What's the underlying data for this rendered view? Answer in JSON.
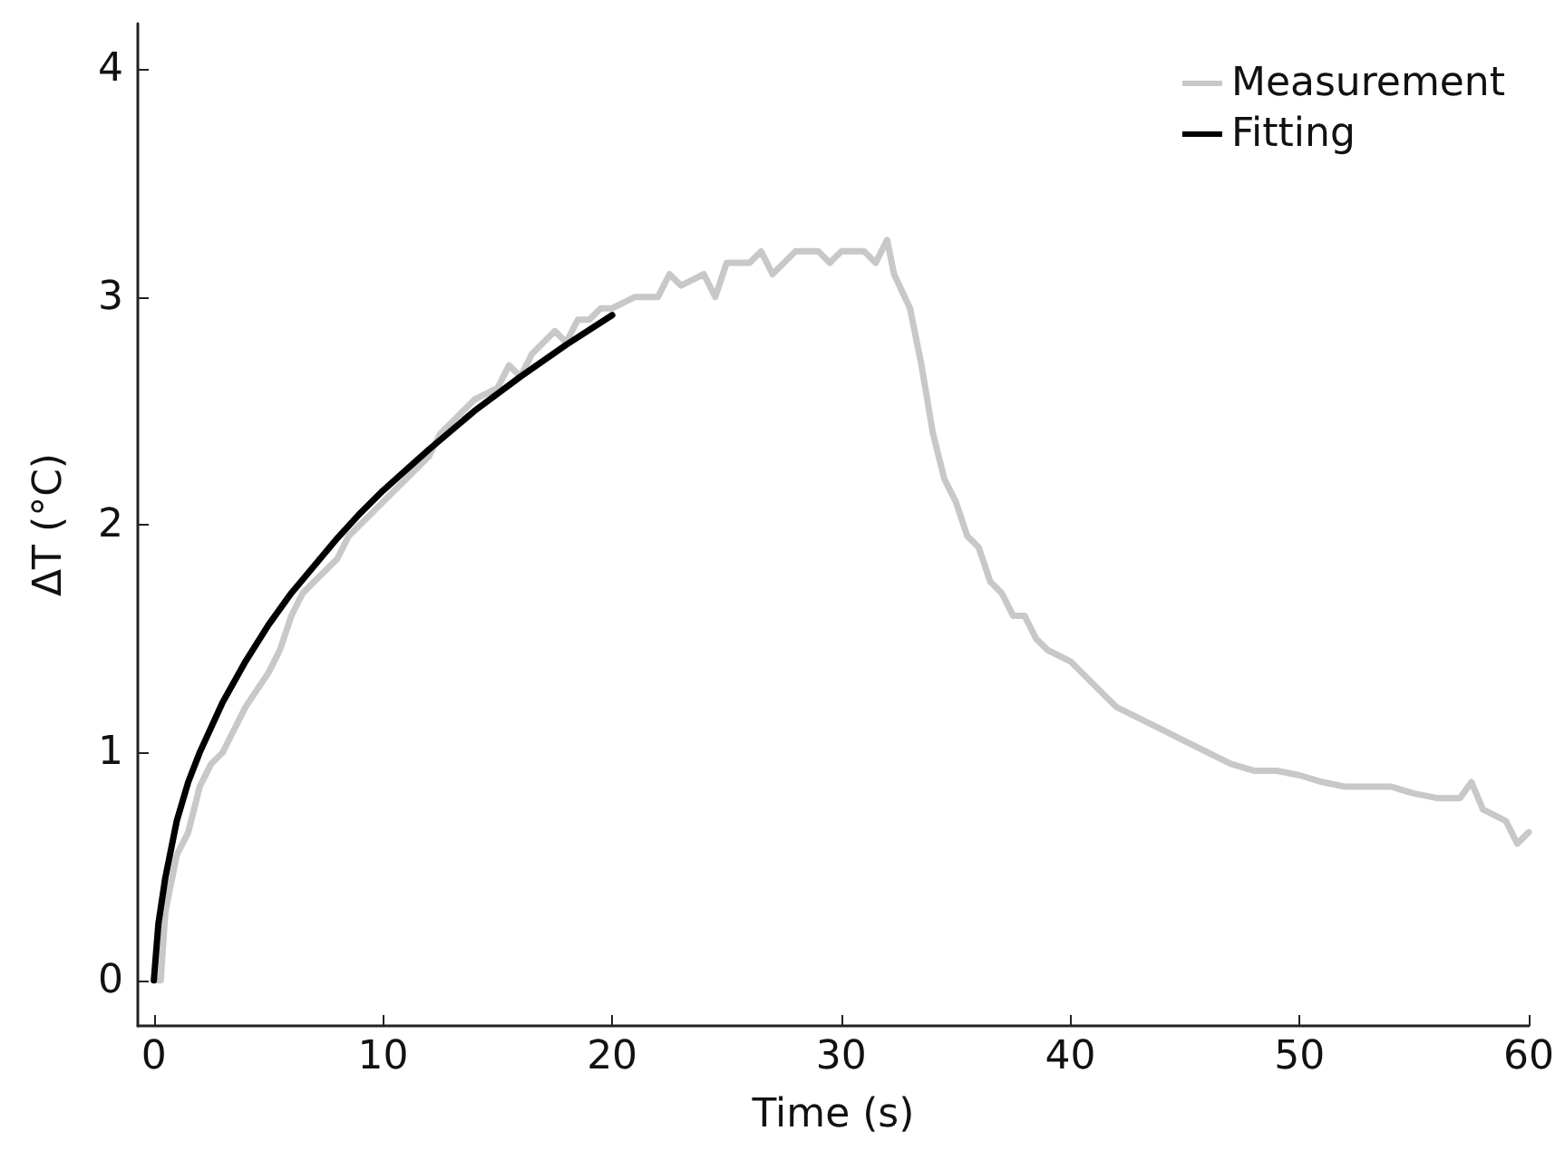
{
  "chart_data": {
    "type": "line",
    "xlabel": "Time (s)",
    "ylabel": "ΔT (°C)",
    "xlim": [
      -0.7,
      60
    ],
    "ylim": [
      -0.2,
      4.2
    ],
    "xticks": [
      0,
      10,
      20,
      30,
      40,
      50,
      60
    ],
    "yticks": [
      0,
      1,
      2,
      3,
      4
    ],
    "grid": false,
    "legend": "top right",
    "marker": "none",
    "line_style": "solid",
    "series": [
      {
        "name": "Measurement",
        "color": "#c8c8c8",
        "x": [
          0,
          0.3,
          0.5,
          1,
          1.5,
          2,
          2.5,
          3,
          3.5,
          4,
          5,
          5.5,
          6,
          6.5,
          7,
          8,
          8.5,
          9,
          10,
          11,
          12,
          12.5,
          13,
          14,
          15,
          15.5,
          16,
          16.5,
          17,
          17.5,
          18,
          18.5,
          19,
          19.5,
          20,
          21,
          22,
          22.5,
          23,
          24,
          24.5,
          25,
          26,
          26.5,
          27,
          28,
          29,
          29.5,
          30,
          31,
          31.5,
          32,
          32.3,
          33,
          33.5,
          34,
          34.5,
          35,
          35.5,
          36,
          36.5,
          37,
          37.5,
          38,
          38.5,
          39,
          40,
          40.5,
          41,
          41.5,
          42,
          43,
          44,
          45,
          46,
          47,
          48,
          49,
          50,
          51,
          52,
          53,
          54,
          55,
          56,
          57,
          57.5,
          58,
          59,
          59.5,
          60
        ],
        "values": [
          0,
          0,
          0.3,
          0.55,
          0.65,
          0.85,
          0.95,
          1.0,
          1.1,
          1.2,
          1.35,
          1.45,
          1.6,
          1.7,
          1.75,
          1.85,
          1.95,
          2.0,
          2.1,
          2.2,
          2.3,
          2.4,
          2.45,
          2.55,
          2.6,
          2.7,
          2.65,
          2.75,
          2.8,
          2.85,
          2.8,
          2.9,
          2.9,
          2.95,
          2.95,
          3.0,
          3.0,
          3.1,
          3.05,
          3.1,
          3.0,
          3.15,
          3.15,
          3.2,
          3.1,
          3.2,
          3.2,
          3.15,
          3.2,
          3.2,
          3.15,
          3.25,
          3.1,
          2.95,
          2.7,
          2.4,
          2.2,
          2.1,
          1.95,
          1.9,
          1.75,
          1.7,
          1.6,
          1.6,
          1.5,
          1.45,
          1.4,
          1.35,
          1.3,
          1.25,
          1.2,
          1.15,
          1.1,
          1.05,
          1.0,
          0.95,
          0.92,
          0.92,
          0.9,
          0.87,
          0.85,
          0.85,
          0.85,
          0.82,
          0.8,
          0.8,
          0.87,
          0.75,
          0.7,
          0.6,
          0.65
        ]
      },
      {
        "name": "Fitting",
        "color": "#000000",
        "x": [
          0,
          0.2,
          0.5,
          1,
          1.5,
          2,
          3,
          4,
          5,
          6,
          7,
          8,
          9,
          10,
          12,
          14,
          16,
          18,
          20
        ],
        "values": [
          0,
          0.25,
          0.45,
          0.7,
          0.87,
          1.0,
          1.22,
          1.4,
          1.56,
          1.7,
          1.82,
          1.94,
          2.05,
          2.15,
          2.33,
          2.5,
          2.65,
          2.79,
          2.92
        ]
      }
    ]
  }
}
